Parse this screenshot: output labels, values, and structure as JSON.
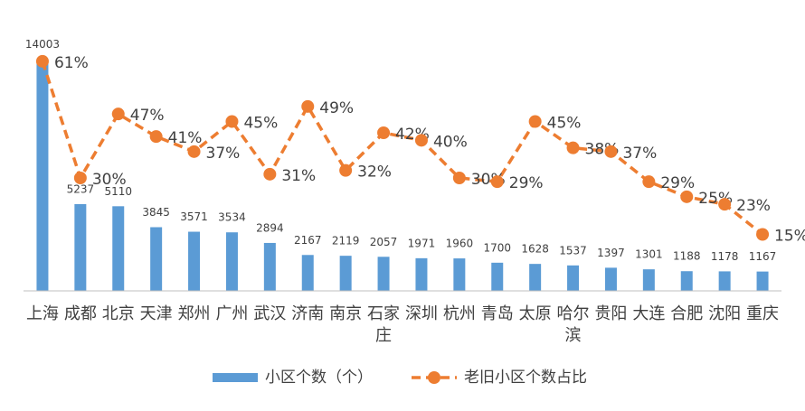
{
  "chart_data": {
    "type": "bar_line",
    "categories": [
      "上海",
      "成都",
      "北京",
      "天津",
      "郑州",
      "广州",
      "武汉",
      "济南",
      "南京",
      "石家庄",
      "深圳",
      "杭州",
      "青岛",
      "太原",
      "哈尔滨",
      "贵阳",
      "大连",
      "合肥",
      "沈阳",
      "重庆"
    ],
    "series": [
      {
        "name": "小区个数（个）",
        "type": "bar",
        "color": "#5b9bd5",
        "values": [
          14003,
          5237,
          5110,
          3845,
          3571,
          3534,
          2894,
          2167,
          2119,
          2057,
          1971,
          1960,
          1700,
          1628,
          1537,
          1397,
          1301,
          1188,
          1178,
          1167
        ]
      },
      {
        "name": "老旧小区个数占比",
        "type": "line",
        "axis": "y2",
        "color": "#ed7d31",
        "values": [
          61,
          30,
          47,
          41,
          37,
          45,
          31,
          49,
          32,
          42,
          40,
          30,
          29,
          45,
          38,
          37,
          29,
          25,
          23,
          15
        ],
        "value_labels": [
          "61%",
          "30%",
          "47%",
          "41%",
          "37%",
          "45%",
          "31%",
          "49%",
          "32%",
          "42%",
          "40%",
          "30%",
          "29%",
          "45%",
          "38%",
          "37%",
          "29%",
          "25%",
          "23%",
          "15%"
        ]
      }
    ],
    "ylim": [
      0,
      15000
    ],
    "y2lim": [
      0,
      66
    ],
    "legend": "bottom"
  }
}
